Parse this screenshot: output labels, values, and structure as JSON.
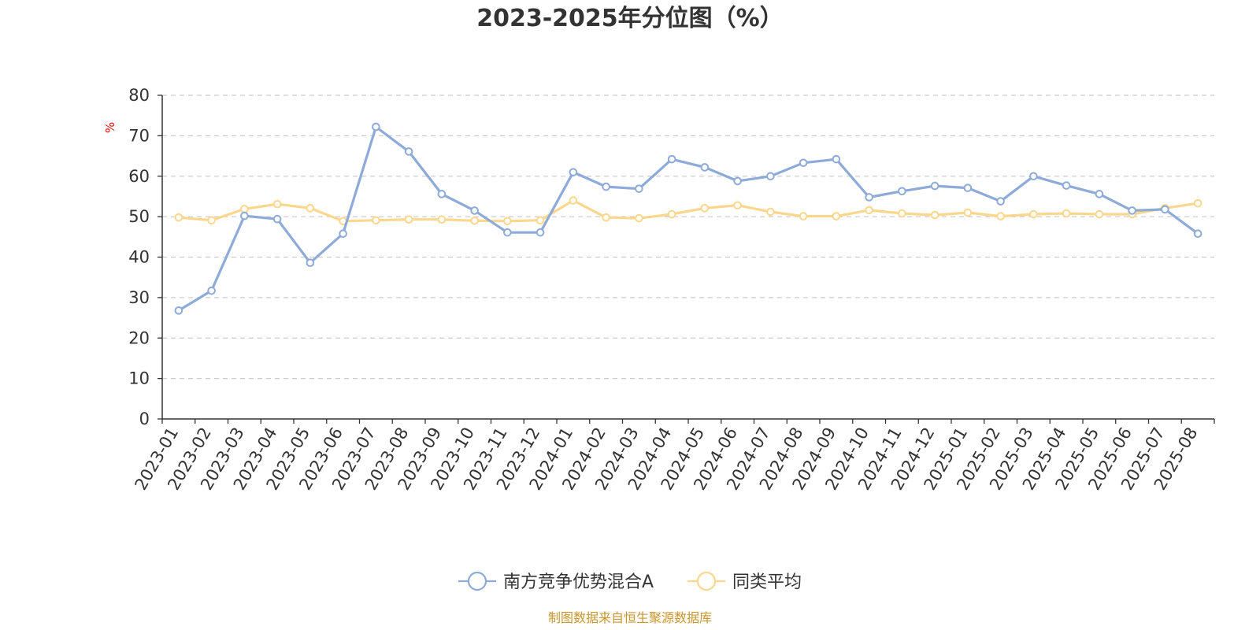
{
  "chart_data": {
    "type": "line",
    "title": "2023-2025年分位图（%）",
    "ylabel": "%",
    "xlabel": "",
    "ylim": [
      0,
      80
    ],
    "yticks": [
      0,
      10,
      20,
      30,
      40,
      50,
      60,
      70,
      80
    ],
    "grid": true,
    "legend_position": "bottom-center",
    "categories": [
      "2023-01",
      "2023-02",
      "2023-03",
      "2023-04",
      "2023-05",
      "2023-06",
      "2023-07",
      "2023-08",
      "2023-09",
      "2023-10",
      "2023-11",
      "2023-12",
      "2024-01",
      "2024-02",
      "2024-03",
      "2024-04",
      "2024-05",
      "2024-06",
      "2024-07",
      "2024-08",
      "2024-09",
      "2024-10",
      "2024-11",
      "2024-12",
      "2025-01",
      "2025-02",
      "2025-03",
      "2025-04",
      "2025-05",
      "2025-06",
      "2025-07",
      "2025-08"
    ],
    "series": [
      {
        "name": "南方竞争优势混合A",
        "color": "#8eaad8",
        "values": [
          26.8,
          31.7,
          50.2,
          49.4,
          38.6,
          45.8,
          72.2,
          66.1,
          55.6,
          51.5,
          46.1,
          46.1,
          61.0,
          57.4,
          56.9,
          64.2,
          62.2,
          58.8,
          60.0,
          63.3,
          64.2,
          54.8,
          56.3,
          57.6,
          57.1,
          53.8,
          60.0,
          57.7,
          55.6,
          51.5,
          51.8,
          45.8
        ]
      },
      {
        "name": "同类平均",
        "color": "#fbd78e",
        "values": [
          49.8,
          49.1,
          51.9,
          53.1,
          52.1,
          48.9,
          49.1,
          49.3,
          49.3,
          49.0,
          48.9,
          49.1,
          54.0,
          49.8,
          49.6,
          50.6,
          52.1,
          52.8,
          51.2,
          50.1,
          50.1,
          51.6,
          50.8,
          50.4,
          51.0,
          50.1,
          50.6,
          50.8,
          50.6,
          50.6,
          52.1,
          53.3
        ]
      }
    ]
  },
  "source_text": "制图数据来自恒生聚源数据库",
  "colors": {
    "title": "#333333",
    "axis": "#333333",
    "grid": "#cccccc",
    "unit": "#ff0000",
    "source": "#c9962c"
  }
}
